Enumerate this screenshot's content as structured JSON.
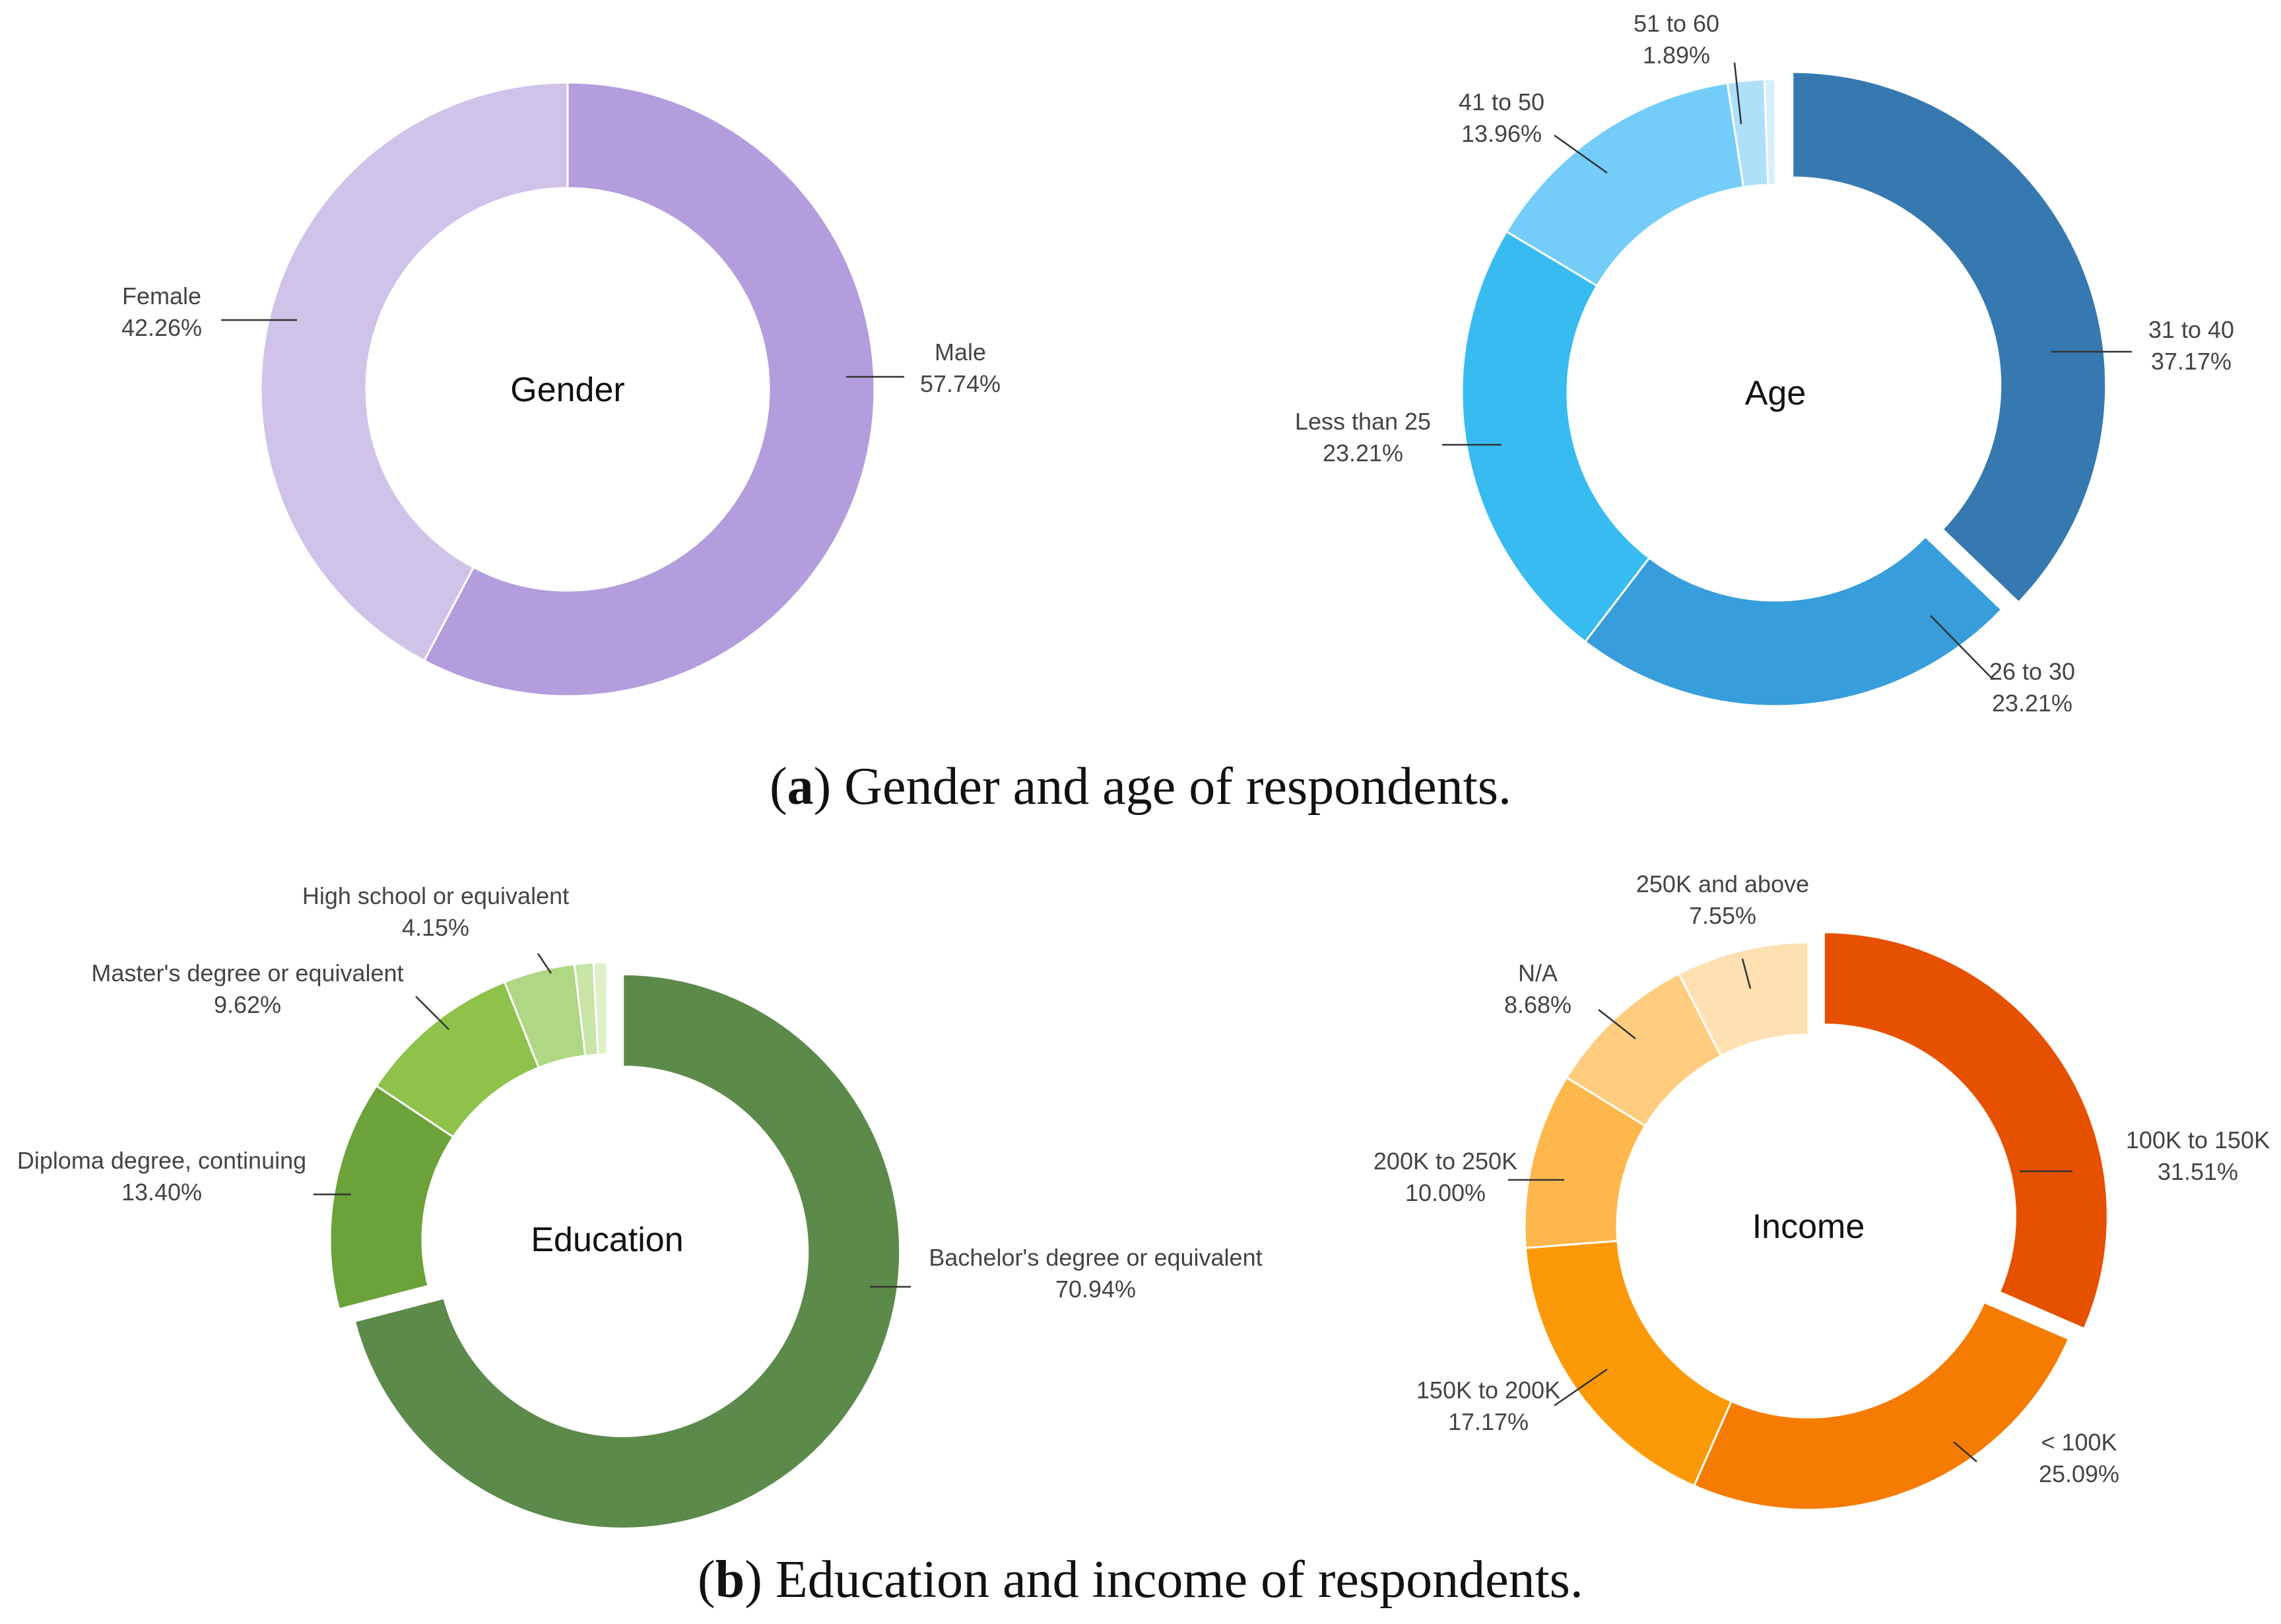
{
  "chart_data": [
    {
      "type": "pie",
      "style": "donut",
      "title": "Gender",
      "categories": [
        "Male",
        "Female"
      ],
      "values": [
        57.74,
        42.26
      ],
      "value_labels": [
        "57.74%",
        "42.26%"
      ],
      "colors": [
        "#b39ddd",
        "#d0c3e9"
      ]
    },
    {
      "type": "pie",
      "style": "donut",
      "title": "Age",
      "categories": [
        "31 to 40",
        "26 to 30",
        "Less than 25",
        "41 to 50",
        "51 to 60",
        ""
      ],
      "values": [
        37.17,
        23.21,
        23.21,
        13.96,
        1.89,
        0.56
      ],
      "value_labels": [
        "37.17%",
        "23.21%",
        "23.21%",
        "13.96%",
        "1.89%",
        ""
      ],
      "colors": [
        "#3679b0",
        "#379ddb",
        "#38bbf1",
        "#73cdf8",
        "#aee0fa",
        "#d6effc"
      ],
      "exploded": [
        "31 to 40"
      ]
    },
    {
      "type": "pie",
      "style": "donut",
      "title": "Education",
      "categories": [
        "Bachelor's degree or equivalent",
        "Diploma degree, continuing",
        "Master's degree or equivalent",
        "High school or equivalent",
        "",
        ""
      ],
      "values": [
        70.94,
        13.4,
        9.62,
        4.15,
        1.1,
        0.79
      ],
      "value_labels": [
        "70.94%",
        "13.40%",
        "9.62%",
        "4.15%",
        "",
        ""
      ],
      "colors": [
        "#5c8a4a",
        "#6ba33a",
        "#8ec24b",
        "#b0d783",
        "#c8e4a7",
        "#ddf0c8"
      ],
      "exploded": [
        "Bachelor's degree or equivalent"
      ]
    },
    {
      "type": "pie",
      "style": "donut",
      "title": "Income",
      "categories": [
        "100K to 150K",
        "< 100K",
        "150K to 200K",
        "200K to 250K",
        "N/A",
        "250K and above"
      ],
      "values": [
        31.51,
        25.09,
        17.17,
        10.0,
        8.68,
        7.55
      ],
      "value_labels": [
        "31.51%",
        "25.09%",
        "17.17%",
        "10.00%",
        "8.68%",
        "7.55%"
      ],
      "colors": [
        "#e65100",
        "#f57c00",
        "#fb9a06",
        "#feb74c",
        "#ffcc80",
        "#ffe0b2"
      ],
      "exploded": [
        "100K to 150K"
      ]
    }
  ],
  "captions": {
    "a": {
      "letter": "a",
      "text": " Gender and age of respondents."
    },
    "b": {
      "letter": "b",
      "text": " Education and income of respondents."
    }
  }
}
